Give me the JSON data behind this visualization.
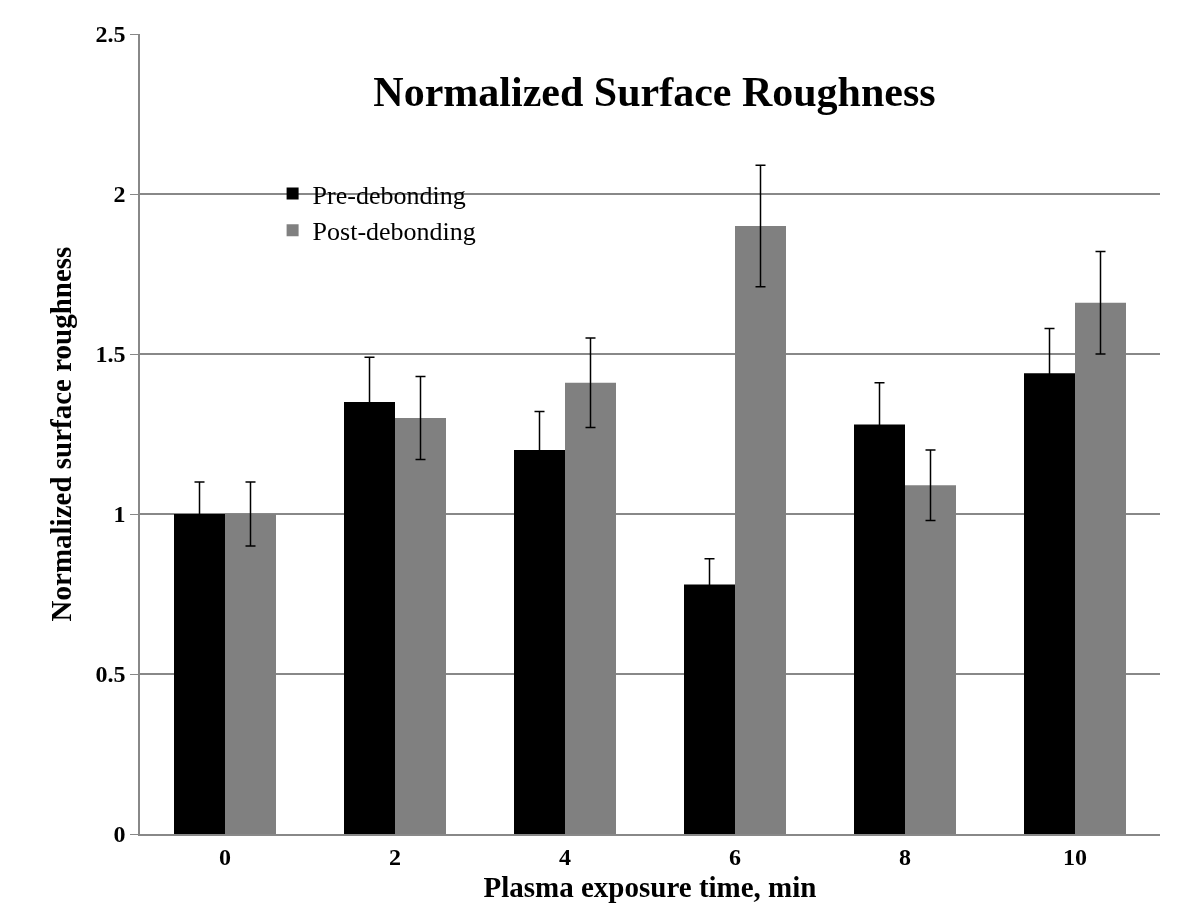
{
  "chart_data": {
    "type": "bar",
    "title": "Normalized Surface Roughness",
    "xlabel": "Plasma exposure time, min",
    "ylabel": "Normalized surface roughness",
    "categories": [
      "0",
      "2",
      "4",
      "6",
      "8",
      "10"
    ],
    "series": [
      {
        "name": "Pre-debonding",
        "color": "#000000",
        "values": [
          1.0,
          1.35,
          1.2,
          0.78,
          1.28,
          1.44
        ],
        "errors": [
          0.1,
          0.14,
          0.12,
          0.08,
          0.13,
          0.14
        ]
      },
      {
        "name": "Post-debonding",
        "color": "#808080",
        "values": [
          1.0,
          1.3,
          1.41,
          1.9,
          1.09,
          1.66
        ],
        "errors": [
          0.1,
          0.13,
          0.14,
          0.19,
          0.11,
          0.16
        ]
      }
    ],
    "ylim": [
      0,
      2.5
    ],
    "yticks": [
      0,
      0.5,
      1,
      1.5,
      2,
      2.5
    ],
    "grid": "y",
    "legend": "top left"
  }
}
